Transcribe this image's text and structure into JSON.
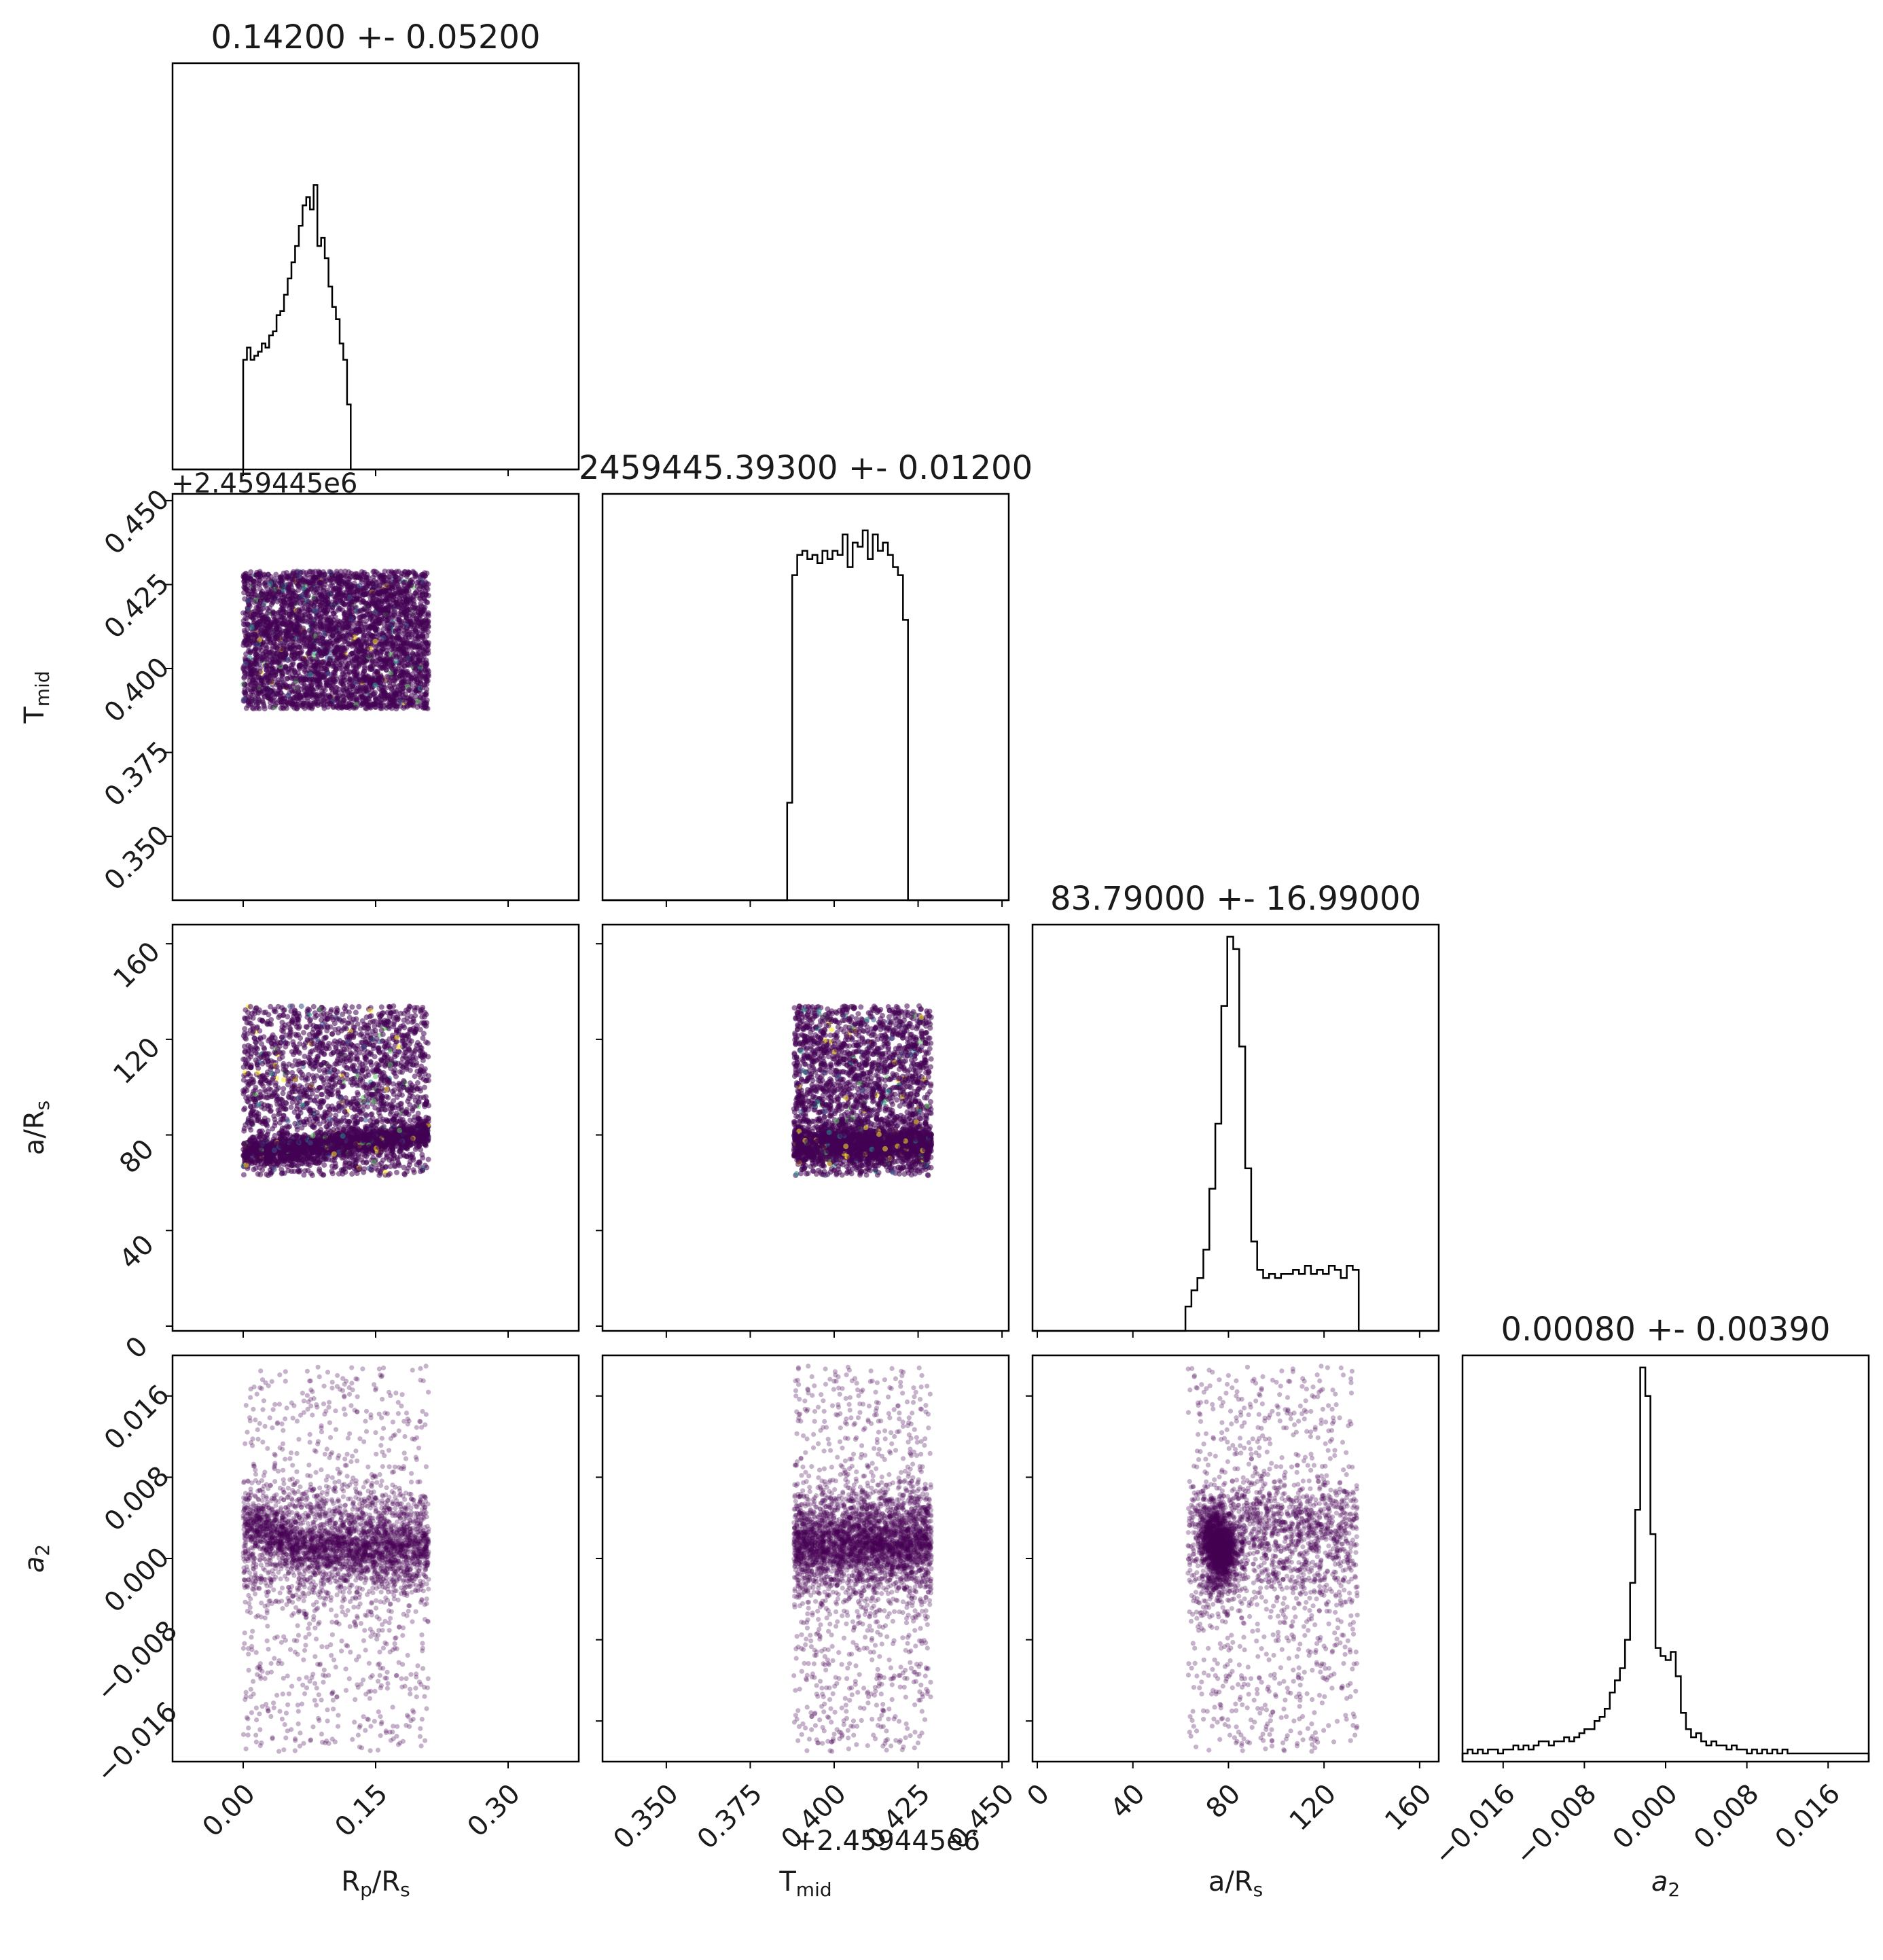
{
  "chart_data": {
    "type": "scatter",
    "parameters": [
      {
        "key": "rp",
        "label": "R",
        "label_sub": "p",
        "label_tail": "/R",
        "label_tail_sub": "s"
      },
      {
        "key": "tmid",
        "label": "T",
        "label_sub": "mid",
        "label_tail": "",
        "label_tail_sub": ""
      },
      {
        "key": "ars",
        "label": "a/R",
        "label_sub": "s",
        "label_tail": "",
        "label_tail_sub": ""
      },
      {
        "key": "a2",
        "label": "a",
        "label_sub": "2",
        "label_tail": "",
        "label_tail_sub": "",
        "italic": true
      }
    ],
    "titles": [
      "0.14200 +- 0.05200",
      "2459445.39300 +- 0.01200",
      "83.79000 +- 16.99000",
      "0.00080 +- 0.00390"
    ],
    "axes": {
      "rp": {
        "range": [
          -0.08,
          0.38
        ],
        "ticks": [
          0.0,
          0.15,
          0.3
        ],
        "tick_labels": [
          "0.00",
          "0.15",
          "0.30"
        ]
      },
      "tmid": {
        "range": [
          0.331,
          0.452
        ],
        "ticks": [
          0.35,
          0.375,
          0.4,
          0.425,
          0.45
        ],
        "tick_labels": [
          "0.350",
          "0.375",
          "0.400",
          "0.425",
          "0.450"
        ],
        "offset_label": "+2.459445e6"
      },
      "ars": {
        "range": [
          -2,
          168
        ],
        "ticks": [
          0,
          40,
          80,
          120,
          160
        ],
        "tick_labels": [
          "0",
          "40",
          "80",
          "120",
          "160"
        ]
      },
      "a2": {
        "range": [
          -0.02,
          0.02
        ],
        "ticks": [
          -0.016,
          -0.008,
          0.0,
          0.008,
          0.016
        ],
        "tick_labels": [
          "−0.016",
          "−0.008",
          "0.000",
          "0.008",
          "0.016"
        ]
      }
    },
    "histograms": {
      "rp": {
        "edges_start": 0.0,
        "bin_width": 0.0042,
        "counts": [
          0.27,
          0.3,
          0.27,
          0.28,
          0.29,
          0.31,
          0.3,
          0.33,
          0.34,
          0.38,
          0.39,
          0.43,
          0.47,
          0.51,
          0.55,
          0.6,
          0.65,
          0.67,
          0.64,
          0.7,
          0.55,
          0.57,
          0.52,
          0.45,
          0.4,
          0.37,
          0.31,
          0.27,
          0.16,
          0.0
        ]
      },
      "tmid": {
        "edges_start": 0.386,
        "bin_width": 0.0015,
        "counts": [
          0.24,
          0.8,
          0.85,
          0.86,
          0.84,
          0.85,
          0.83,
          0.86,
          0.84,
          0.86,
          0.85,
          0.9,
          0.82,
          0.88,
          0.87,
          0.91,
          0.84,
          0.9,
          0.86,
          0.88,
          0.85,
          0.82,
          0.8,
          0.69,
          0.0
        ]
      },
      "ars": {
        "edges_start": 62,
        "bin_width": 2.5,
        "counts": [
          0.06,
          0.1,
          0.13,
          0.2,
          0.35,
          0.51,
          0.8,
          0.97,
          0.94,
          0.7,
          0.4,
          0.22,
          0.15,
          0.13,
          0.14,
          0.13,
          0.14,
          0.14,
          0.15,
          0.14,
          0.16,
          0.14,
          0.15,
          0.14,
          0.16,
          0.15,
          0.13,
          0.16,
          0.15,
          0.0
        ]
      },
      "a2": {
        "edges_start": -0.02,
        "bin_width": 0.0005,
        "counts": [
          0.02,
          0.03,
          0.02,
          0.03,
          0.02,
          0.03,
          0.03,
          0.02,
          0.03,
          0.03,
          0.04,
          0.03,
          0.04,
          0.03,
          0.04,
          0.05,
          0.05,
          0.04,
          0.05,
          0.05,
          0.06,
          0.05,
          0.06,
          0.07,
          0.08,
          0.08,
          0.1,
          0.11,
          0.13,
          0.17,
          0.2,
          0.23,
          0.3,
          0.44,
          0.62,
          0.97,
          0.9,
          0.56,
          0.28,
          0.26,
          0.25,
          0.27,
          0.21,
          0.12,
          0.08,
          0.06,
          0.07,
          0.05,
          0.04,
          0.05,
          0.04,
          0.04,
          0.03,
          0.04,
          0.03,
          0.03,
          0.02,
          0.03,
          0.02,
          0.03,
          0.02,
          0.03,
          0.02,
          0.03,
          0.02,
          0.02,
          0.02,
          0.02,
          0.02,
          0.02,
          0.02,
          0.02,
          0.02,
          0.02,
          0.02,
          0.02,
          0.02,
          0.02,
          0.02,
          0.02
        ]
      }
    },
    "scatter_pairs": [
      {
        "x": "rp",
        "y": "tmid"
      },
      {
        "x": "rp",
        "y": "ars"
      },
      {
        "x": "tmid",
        "y": "ars"
      },
      {
        "x": "rp",
        "y": "a2"
      },
      {
        "x": "tmid",
        "y": "a2"
      },
      {
        "x": "ars",
        "y": "a2"
      }
    ],
    "sample_support": {
      "rp": [
        0.0,
        0.21
      ],
      "tmid": [
        0.388,
        0.429
      ],
      "ars": [
        63,
        134
      ],
      "a2": [
        -0.02,
        0.02
      ]
    },
    "point_color": "#440154",
    "accent_colors": [
      "#3b528b",
      "#21918c",
      "#5ec962",
      "#fde725"
    ],
    "grid": false
  }
}
